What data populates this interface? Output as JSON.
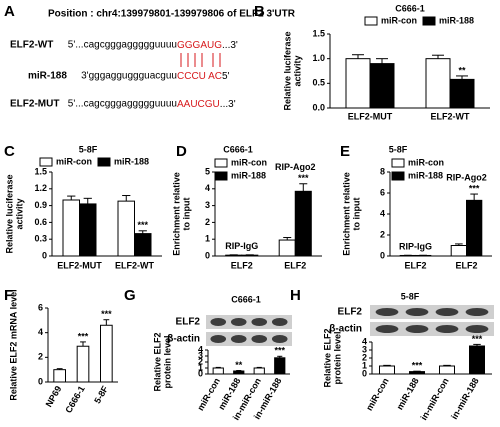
{
  "panel_a": {
    "label": "A",
    "position": "Position : chr4:139979801-139979806 of ELF2 3'UTR",
    "rows": [
      {
        "name": "ELF2-WT",
        "seq": "5'...cagcgggaggggguuuu",
        "site": "GGGAUG",
        "end": "...3'"
      },
      {
        "name": "miR-188",
        "seq": "3'gggagguggguacguu",
        "site": "CCCU AC",
        "end": "5'"
      },
      {
        "name": "ELF2-MUT",
        "seq": "5'...cagcgggaggggguuuu",
        "site": "AAUCGU",
        "end": "...3'"
      }
    ]
  },
  "chart_data": [
    {
      "type": "bar",
      "panel": "B",
      "title": "C666-1",
      "ylabel": [
        "Relative luciferase",
        "activity"
      ],
      "categories": [
        "ELF2-MUT",
        "ELF2-WT"
      ],
      "series": [
        {
          "name": "miR-con",
          "color": "#ffffff",
          "values": [
            1.0,
            1.0
          ],
          "errors": [
            0.08,
            0.07
          ]
        },
        {
          "name": "miR-188",
          "color": "#000000",
          "values": [
            0.9,
            0.58
          ],
          "errors": [
            0.1,
            0.07
          ],
          "significance": [
            null,
            "**"
          ]
        }
      ],
      "ylim": [
        0,
        1.5
      ],
      "yticks": [
        {
          "value": 0,
          "label": "0.0"
        },
        {
          "value": 0.5,
          "label": "0.5"
        },
        {
          "value": 1,
          "label": "1.0"
        },
        {
          "value": 1.5,
          "label": "1.5"
        }
      ],
      "legend": "top"
    },
    {
      "type": "bar",
      "panel": "C",
      "title": "5-8F",
      "ylabel": [
        "Relative luciferase",
        "activity"
      ],
      "categories": [
        "ELF2-MUT",
        "ELF2-WT"
      ],
      "series": [
        {
          "name": "miR-con",
          "color": "#ffffff",
          "values": [
            1.0,
            0.98
          ],
          "errors": [
            0.07,
            0.1
          ]
        },
        {
          "name": "miR-188",
          "color": "#000000",
          "values": [
            0.93,
            0.4
          ],
          "errors": [
            0.1,
            0.05
          ],
          "significance": [
            null,
            "***"
          ]
        }
      ],
      "ylim": [
        0,
        1.5
      ],
      "yticks": [
        0,
        0.3,
        0.6,
        0.9,
        1.2,
        1.5
      ],
      "legend": "top"
    },
    {
      "type": "bar",
      "panel": "D",
      "title": "C666-1",
      "ylabel": [
        "Enrichment relative",
        "to input"
      ],
      "categories": [
        "ELF2",
        "ELF2"
      ],
      "group_labels": [
        "RIP-IgG",
        "RIP-Ago2"
      ],
      "series": [
        {
          "name": "miR-con",
          "color": "#ffffff",
          "values": [
            0.05,
            0.95
          ],
          "errors": [
            0.02,
            0.15
          ]
        },
        {
          "name": "miR-188",
          "color": "#000000",
          "values": [
            0.05,
            3.85
          ],
          "errors": [
            0.02,
            0.45
          ],
          "significance": [
            null,
            "***"
          ]
        }
      ],
      "ylim": [
        0,
        5
      ],
      "yticks": [
        0,
        1,
        2,
        3,
        4,
        5
      ],
      "legend": "upper left"
    },
    {
      "type": "bar",
      "panel": "E",
      "title": "5-8F",
      "ylabel": [
        "Enrichment relative",
        "to input"
      ],
      "categories": [
        "ELF2",
        "ELF2"
      ],
      "group_labels": [
        "RIP-IgG",
        "RIP-Ago2"
      ],
      "series": [
        {
          "name": "miR-con",
          "color": "#ffffff",
          "values": [
            0.05,
            1.0
          ],
          "errors": [
            0.02,
            0.15
          ]
        },
        {
          "name": "miR-188",
          "color": "#000000",
          "values": [
            0.05,
            5.3
          ],
          "errors": [
            0.02,
            0.6
          ],
          "significance": [
            null,
            "***"
          ]
        }
      ],
      "ylim": [
        0,
        8
      ],
      "yticks": [
        0,
        2,
        4,
        6,
        8
      ],
      "legend": "upper left"
    },
    {
      "type": "bar",
      "panel": "F",
      "ylabel": [
        "Relative ELF2 mRNA level"
      ],
      "categories": [
        "NP69",
        "C666-1",
        "5-8F"
      ],
      "values": [
        1.0,
        2.9,
        4.6
      ],
      "errors": [
        0.08,
        0.35,
        0.45
      ],
      "significance": [
        null,
        "***",
        "***"
      ],
      "colors": [
        "#ffffff",
        "#ffffff",
        "#ffffff"
      ],
      "ylim": [
        0,
        6
      ],
      "yticks": [
        0,
        2,
        4,
        6
      ]
    },
    {
      "type": "bar",
      "panel": "G",
      "title": "C666-1",
      "blot_labels": [
        "ELF2",
        "β-actin"
      ],
      "ylabel": [
        "Relative ELF2",
        "protein level"
      ],
      "categories": [
        "miR-con",
        "miR-188",
        "in-miR-con",
        "in-miR-188"
      ],
      "values": [
        1.0,
        0.5,
        1.0,
        2.7
      ],
      "errors": [
        0.1,
        0.08,
        0.1,
        0.25
      ],
      "significance": [
        null,
        "**",
        null,
        "***"
      ],
      "colors": [
        "#ffffff",
        "#000000",
        "#ffffff",
        "#000000"
      ],
      "ylim": [
        0,
        4
      ],
      "yticks": [
        0,
        1,
        2,
        3,
        4
      ]
    },
    {
      "type": "bar",
      "panel": "H",
      "title": "5-8F",
      "blot_labels": [
        "ELF2",
        "β-actin"
      ],
      "ylabel": [
        "Relative ELF2",
        "protein level"
      ],
      "categories": [
        "miR-con",
        "miR-188",
        "in-miR-con",
        "in-miR-188"
      ],
      "values": [
        1.0,
        0.3,
        1.0,
        3.5
      ],
      "errors": [
        0.08,
        0.05,
        0.08,
        0.2
      ],
      "significance": [
        null,
        "***",
        null,
        "***"
      ],
      "colors": [
        "#ffffff",
        "#000000",
        "#ffffff",
        "#000000"
      ],
      "ylim": [
        0,
        4
      ],
      "yticks": [
        0,
        1,
        2,
        3,
        4
      ]
    }
  ]
}
